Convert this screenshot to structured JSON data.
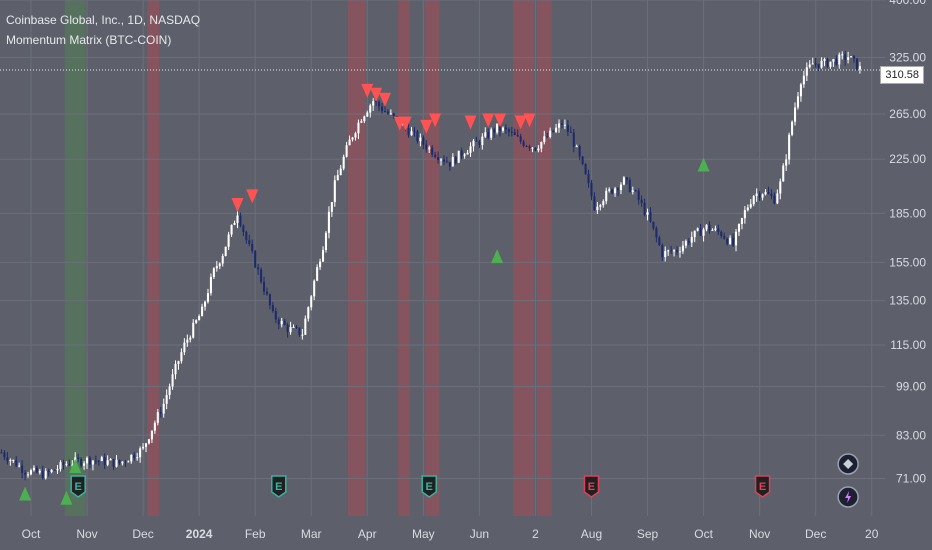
{
  "legend": {
    "symbol_line": "Coinbase Global, Inc., 1D, NASDAQ",
    "indicator_line": "Momentum Matrix (BTC-COIN)"
  },
  "price_label": "310.58",
  "colors": {
    "background": "#5d606b",
    "candle": "#ffffff",
    "candle_dark": "#1d2a6b",
    "buy_signal": "#4caf50",
    "sell_signal": "#ff5252",
    "sell_zone": "#b9484f",
    "buy_zone": "#4e8a4f",
    "earnings_red": "#e0405a",
    "earnings_teal": "#38b2a1"
  },
  "chart_data": {
    "type": "candlestick",
    "title": "Coinbase Global, Inc., 1D, NASDAQ",
    "indicator": "Momentum Matrix (BTC-COIN)",
    "last_price": 310.58,
    "y_scale": "log",
    "ylim": [
      62,
      400
    ],
    "y_ticks": [
      "400.00",
      "325.00",
      "265.00",
      "225.00",
      "185.00",
      "155.00",
      "135.00",
      "115.00",
      "99.00",
      "83.00",
      "71.00"
    ],
    "x_ticks": [
      "Oct",
      "Nov",
      "Dec",
      "2024",
      "Feb",
      "Mar",
      "Apr",
      "May",
      "Jun",
      "2",
      "Aug",
      "Sep",
      "Oct",
      "Nov",
      "Dec",
      "20"
    ],
    "price_path_approx": [
      [
        0,
        78
      ],
      [
        8,
        73
      ],
      [
        15,
        72
      ],
      [
        22,
        75
      ],
      [
        30,
        76
      ],
      [
        40,
        75
      ],
      [
        48,
        79
      ],
      [
        55,
        93
      ],
      [
        62,
        115
      ],
      [
        68,
        130
      ],
      [
        72,
        150
      ],
      [
        75,
        160
      ],
      [
        78,
        175
      ],
      [
        80,
        186
      ],
      [
        83,
        168
      ],
      [
        87,
        150
      ],
      [
        92,
        128
      ],
      [
        97,
        122
      ],
      [
        102,
        120
      ],
      [
        105,
        138
      ],
      [
        109,
        165
      ],
      [
        113,
        205
      ],
      [
        118,
        240
      ],
      [
        122,
        262
      ],
      [
        126,
        278
      ],
      [
        129,
        270
      ],
      [
        132,
        263
      ],
      [
        137,
        252
      ],
      [
        142,
        240
      ],
      [
        147,
        230
      ],
      [
        152,
        222
      ],
      [
        157,
        232
      ],
      [
        162,
        240
      ],
      [
        168,
        252
      ],
      [
        172,
        248
      ],
      [
        176,
        240
      ],
      [
        181,
        235
      ],
      [
        186,
        246
      ],
      [
        190,
        256
      ],
      [
        193,
        246
      ],
      [
        197,
        218
      ],
      [
        201,
        190
      ],
      [
        206,
        200
      ],
      [
        211,
        208
      ],
      [
        215,
        198
      ],
      [
        219,
        183
      ],
      [
        224,
        160
      ],
      [
        229,
        162
      ],
      [
        234,
        170
      ],
      [
        239,
        176
      ],
      [
        244,
        172
      ],
      [
        248,
        165
      ],
      [
        252,
        186
      ],
      [
        255,
        198
      ],
      [
        258,
        200
      ],
      [
        262,
        195
      ],
      [
        264,
        206
      ],
      [
        266,
        228
      ],
      [
        268,
        258
      ],
      [
        271,
        300
      ],
      [
        275,
        318
      ],
      [
        279,
        318
      ],
      [
        283,
        322
      ],
      [
        287,
        326
      ],
      [
        291,
        312
      ]
    ],
    "buy_signals": [
      [
        8,
        67
      ],
      [
        22,
        66
      ],
      [
        25,
        74
      ],
      [
        168,
        158
      ],
      [
        238,
        220
      ]
    ],
    "sell_signals": [
      [
        80,
        190
      ],
      [
        85,
        196
      ],
      [
        124,
        287
      ],
      [
        127,
        283
      ],
      [
        130,
        278
      ],
      [
        135,
        255
      ],
      [
        137,
        255
      ],
      [
        144,
        252
      ],
      [
        147,
        258
      ],
      [
        159,
        256
      ],
      [
        165,
        258
      ],
      [
        169,
        258
      ],
      [
        176,
        256
      ],
      [
        179,
        258
      ]
    ],
    "sell_zones": [
      [
        50,
        53
      ],
      [
        118,
        123
      ],
      [
        135,
        138
      ],
      [
        144,
        148
      ],
      [
        174,
        180
      ],
      [
        182,
        186
      ]
    ],
    "buy_zones": [
      [
        22,
        28
      ]
    ],
    "earnings_markers": [
      {
        "x": 26,
        "color": "teal"
      },
      {
        "x": 94,
        "color": "teal"
      },
      {
        "x": 145,
        "color": "teal"
      },
      {
        "x": 200,
        "color": "red"
      },
      {
        "x": 258,
        "color": "red"
      }
    ],
    "event_markers": [
      {
        "x": 287,
        "row": "upper",
        "icon": "diamond-plus-icon"
      },
      {
        "x": 287,
        "row": "lower",
        "icon": "lightning-icon"
      }
    ]
  }
}
